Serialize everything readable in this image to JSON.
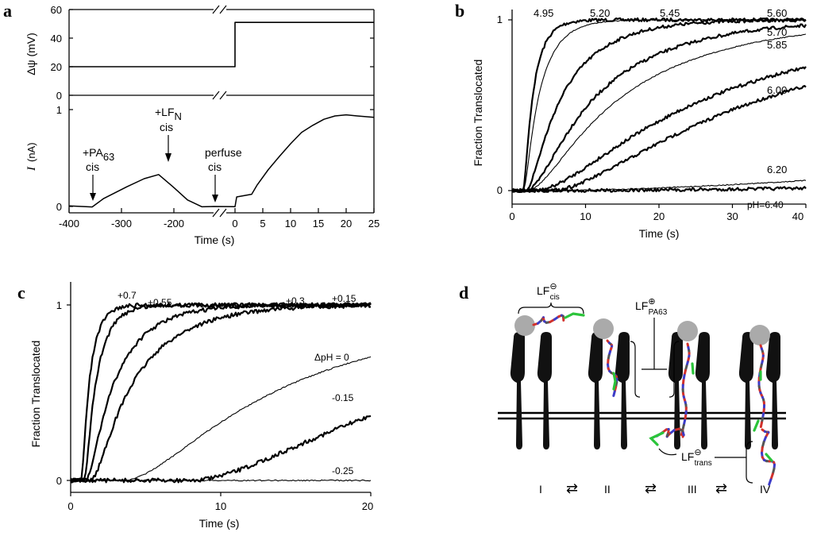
{
  "panels": {
    "a": {
      "label": "a",
      "top": {
        "ylabel": "Δψ (mV)",
        "yticks": [
          "0",
          "20",
          "40",
          "60"
        ],
        "steps": [
          {
            "t": -400,
            "v": 20
          },
          {
            "t": 0,
            "v": 20
          },
          {
            "t": 0,
            "v": 51
          },
          {
            "t": 25,
            "v": 51
          }
        ]
      },
      "bottom": {
        "ylabel_i": "I",
        "ylabel_unit": "(nA)",
        "yticks": [
          "0",
          "1"
        ],
        "annotations": {
          "pa63": "+PA",
          "pa63_sub": "63",
          "pa63_cis": "cis",
          "lfn": "+LF",
          "lfn_sub": "N",
          "lfn_cis": "cis",
          "perfuse": "perfuse",
          "perfuse_cis": "cis"
        }
      },
      "xticks": [
        "-400",
        "-300",
        "-200",
        "0",
        "5",
        "10",
        "15",
        "20",
        "25"
      ],
      "xlabel": "Time (s)"
    },
    "b": {
      "label": "b",
      "ylabel": "Fraction Translocated",
      "xlabel": "Time (s)",
      "yticks": [
        "0",
        "1"
      ],
      "xticks": [
        "0",
        "10",
        "20",
        "30",
        "40"
      ],
      "curve_labels": [
        "4.95",
        "5.20",
        "5.45",
        "5.60",
        "5.70",
        "5.85",
        "6.00",
        "6.20",
        "pH=6.40"
      ]
    },
    "c": {
      "label": "c",
      "ylabel": "Fraction Translocated",
      "xlabel": "Time (s)",
      "yticks": [
        "0",
        "1"
      ],
      "xticks": [
        "0",
        "10",
        "20"
      ],
      "curve_labels": [
        "+0.7",
        "+0.55",
        "+0.3",
        "+0.15",
        "ΔpH = 0",
        "-0.15",
        "-0.25"
      ]
    },
    "d": {
      "label": "d",
      "lf_cis": "LF",
      "lf_cis_sub": "cis",
      "lf_cis_sup": "⊖",
      "lf_pa63": "LF",
      "lf_pa63_sub": "PA63",
      "lf_pa63_sup": "⊕",
      "lf_trans": "LF",
      "lf_trans_sub": "trans",
      "lf_trans_sup": "⊖",
      "states": [
        "I",
        "II",
        "III",
        "IV"
      ],
      "equilibrium_glyph": "⇄"
    }
  },
  "chart_data": [
    {
      "type": "line",
      "panel": "a-top",
      "title": "",
      "xlabel": "Time (s)",
      "ylabel": "Δψ (mV)",
      "xlim": [
        -400,
        25
      ],
      "ylim": [
        0,
        60
      ],
      "axis_break": "between -150 and 0 s",
      "series": [
        {
          "name": "Δψ",
          "x": [
            -400,
            -5,
            0,
            25
          ],
          "y": [
            20,
            20,
            51,
            51
          ]
        }
      ]
    },
    {
      "type": "line",
      "panel": "a-bottom",
      "xlabel": "Time (s)",
      "ylabel": "I (nA)",
      "xlim": [
        -400,
        25
      ],
      "ylim": [
        0,
        1
      ],
      "series": [
        {
          "name": "current",
          "x": [
            -400,
            -360,
            -340,
            -300,
            -270,
            -245,
            -220,
            -195,
            -170,
            -155,
            0,
            0.3,
            3,
            4,
            6,
            8,
            10,
            12,
            14,
            16,
            18,
            20,
            22,
            25
          ],
          "y": [
            0,
            0,
            0.08,
            0.2,
            0.29,
            0.33,
            0.2,
            0.07,
            0.0,
            0.0,
            0.0,
            0.1,
            0.13,
            0.22,
            0.38,
            0.52,
            0.65,
            0.76,
            0.84,
            0.9,
            0.94,
            0.95,
            0.93,
            0.92
          ]
        }
      ]
    },
    {
      "type": "line",
      "panel": "b",
      "xlabel": "Time (s)",
      "ylabel": "Fraction Translocated",
      "xlim": [
        0,
        40
      ],
      "ylim": [
        0,
        1
      ],
      "series": [
        {
          "name": "4.95",
          "k": 0.65,
          "t0": 1.5
        },
        {
          "name": "5.20",
          "k": 0.4,
          "t0": 1.5
        },
        {
          "name": "5.45",
          "k": 0.17,
          "t0": 1.8
        },
        {
          "name": "5.60",
          "k": 0.09,
          "t0": 2.0
        },
        {
          "name": "5.70",
          "k": 0.065,
          "t0": 2.0
        },
        {
          "name": "5.85",
          "k": 0.035,
          "t0": 3.0
        },
        {
          "name": "6.00",
          "k": 0.028,
          "t0": 5.0
        },
        {
          "name": "6.20",
          "k": 0.0038,
          "t0": 2.0
        },
        {
          "name": "pH=6.40",
          "k": 0.0017,
          "t0": 2.0
        }
      ]
    },
    {
      "type": "line",
      "panel": "c",
      "xlabel": "Time (s)",
      "ylabel": "Fraction Translocated",
      "xlim": [
        0,
        20
      ],
      "ylim": [
        0,
        1
      ],
      "series": [
        {
          "name": "+0.7",
          "k": 1.6,
          "t0": 0.7
        },
        {
          "name": "+0.55",
          "k": 1.1,
          "t0": 0.9
        },
        {
          "name": "+0.3",
          "k": 0.45,
          "t0": 1.0
        },
        {
          "name": "+0.15",
          "k": 0.3,
          "t0": 1.3
        },
        {
          "name": "ΔpH = 0",
          "k": 0.075,
          "t0": 3.5
        },
        {
          "name": "-0.15",
          "k": 0.045,
          "t0": 8.0
        },
        {
          "name": "-0.25",
          "k": 0.0,
          "t0": 0
        }
      ]
    }
  ]
}
